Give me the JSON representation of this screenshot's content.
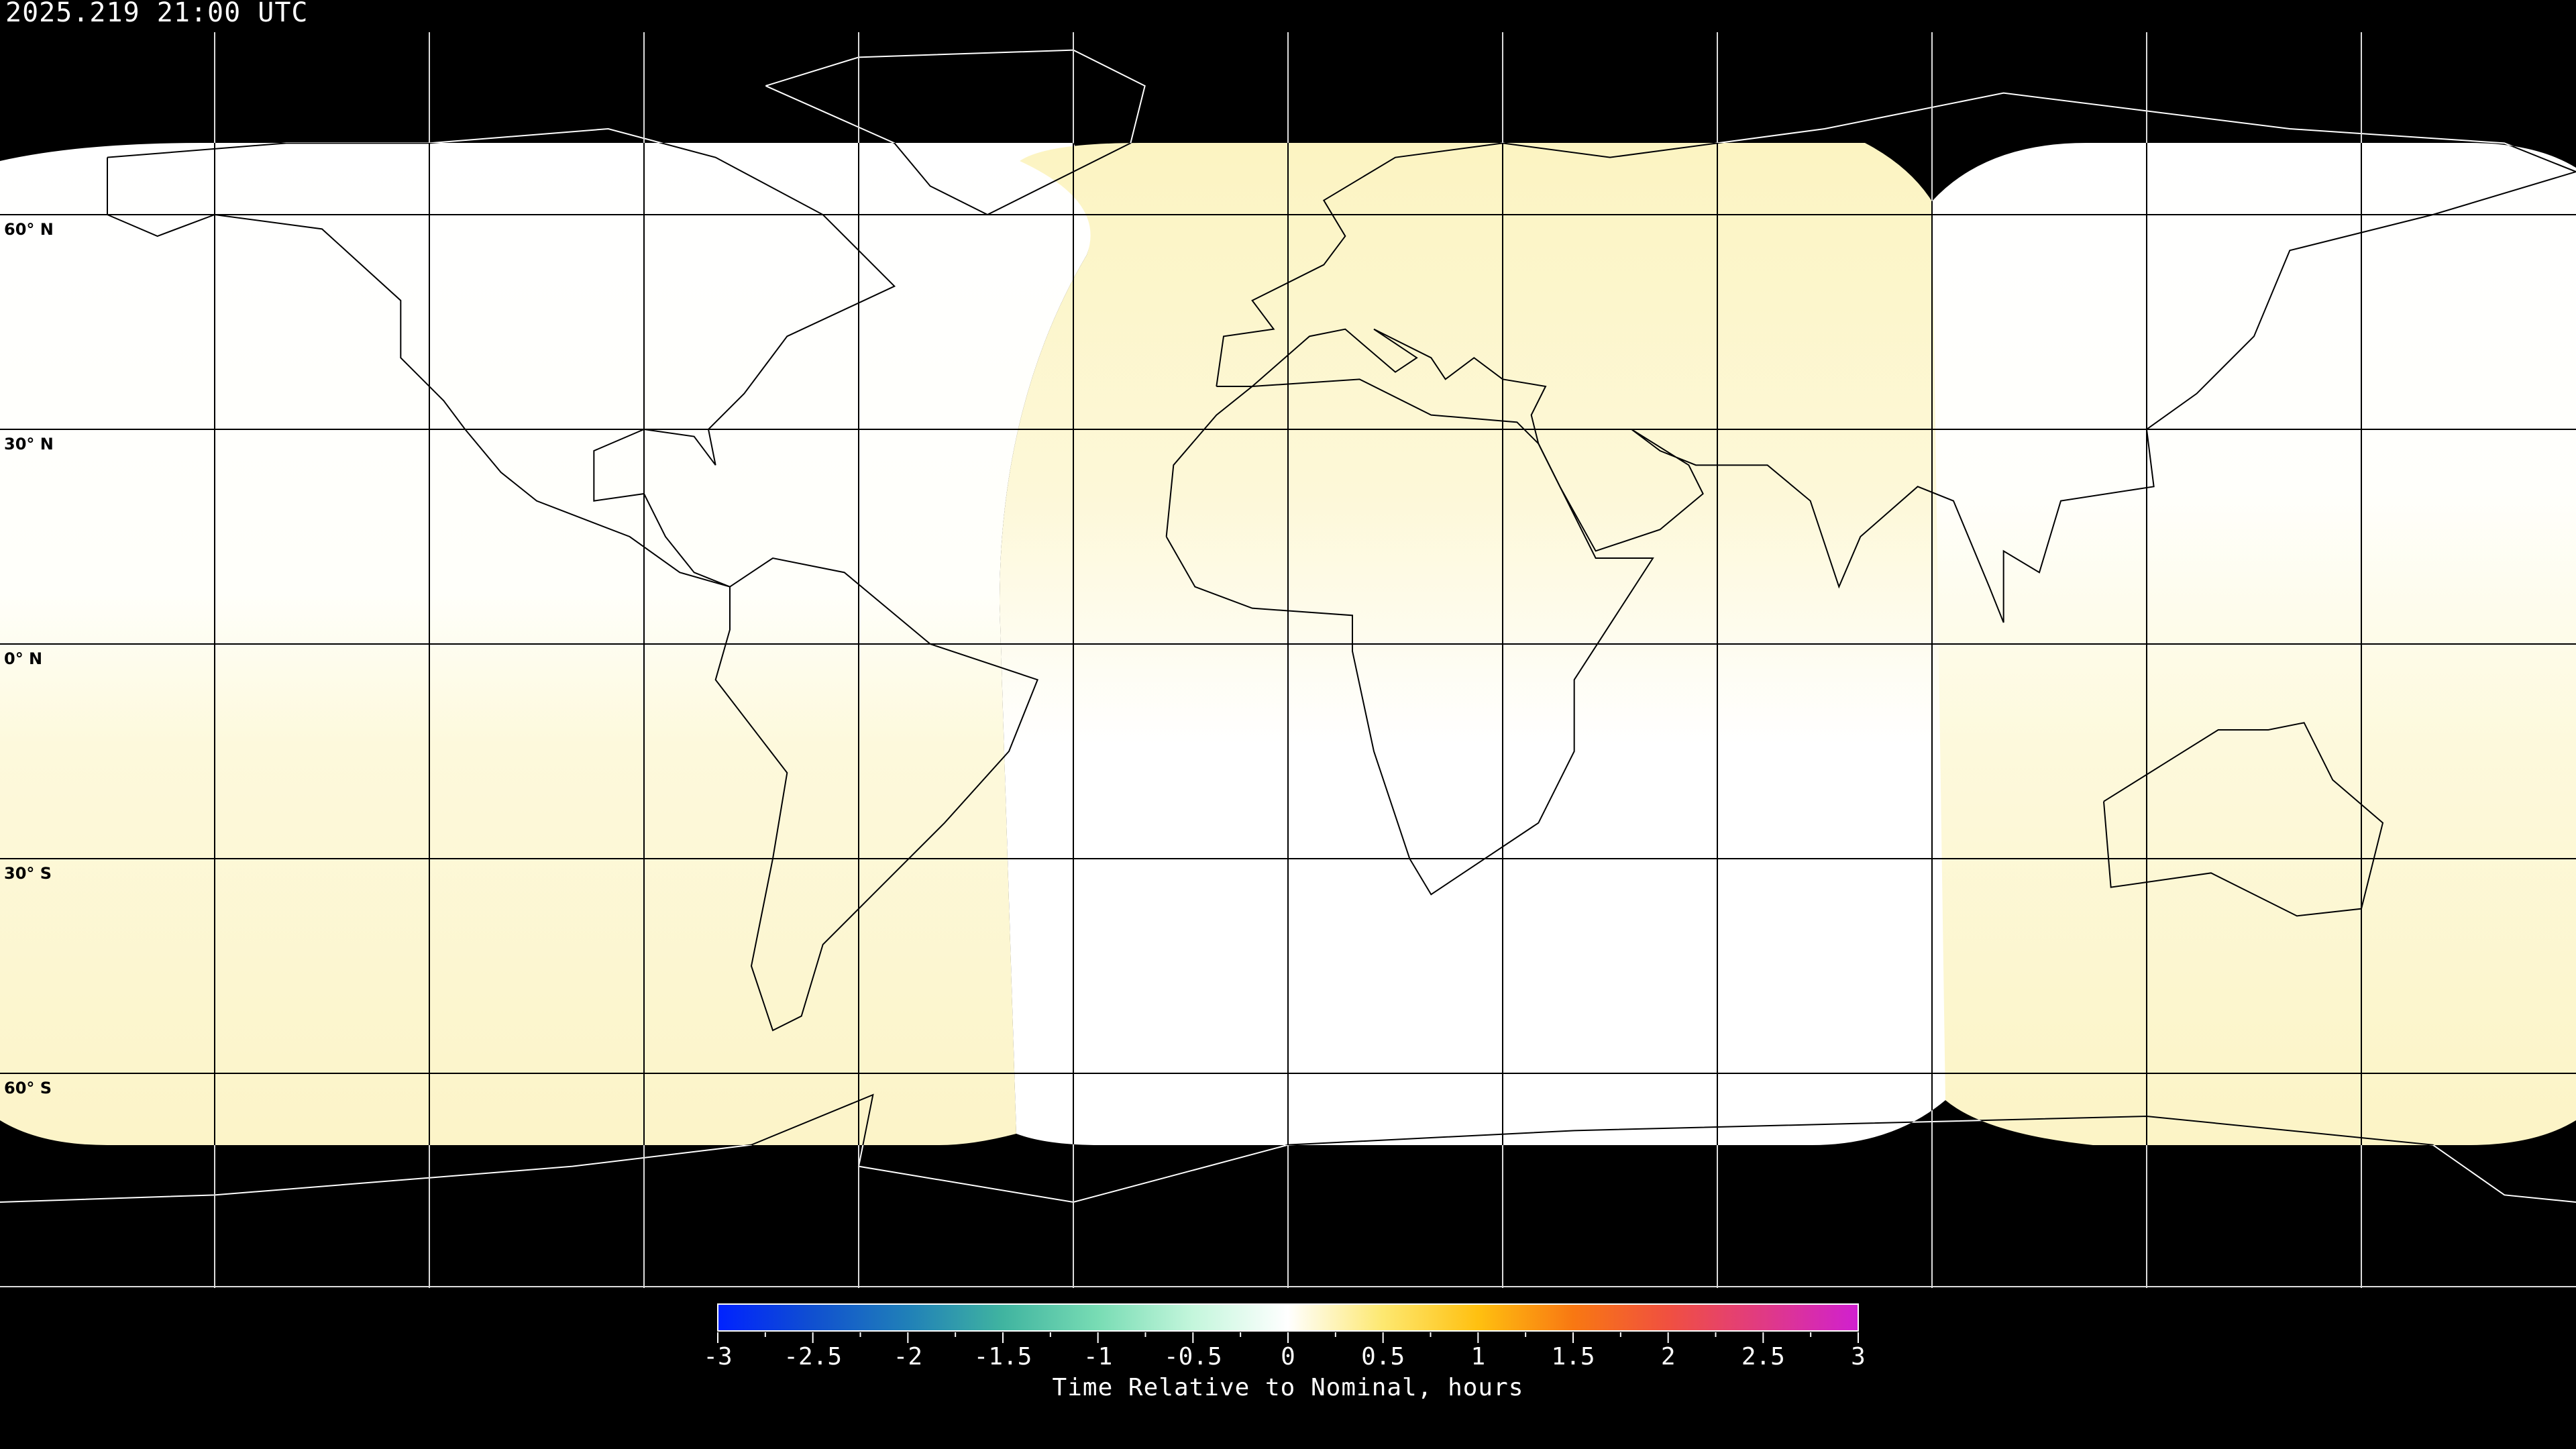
{
  "header": {
    "timestamp": "2025.219 21:00 UTC"
  },
  "map": {
    "projection": "equirectangular",
    "gridline_longitudes": [
      -150,
      -120,
      -90,
      -60,
      -30,
      0,
      30,
      60,
      90,
      120,
      150
    ],
    "gridline_latitudes": [
      60,
      30,
      0,
      -30,
      -60
    ],
    "lat_labels": [
      {
        "lat": 60,
        "text": "60° N"
      },
      {
        "lat": 30,
        "text": "30° N"
      },
      {
        "lat": 0,
        "text": "0° N"
      },
      {
        "lat": -30,
        "text": "30° S"
      },
      {
        "lat": -60,
        "text": "60° S"
      }
    ],
    "background_color": "#000000",
    "coverage_colors": {
      "near_nominal": "#ffffff",
      "slightly_late": "#fcf5c4"
    }
  },
  "colorbar": {
    "title": "Time Relative to Nominal, hours",
    "min": -3,
    "max": 3,
    "tick_labels": [
      "-3",
      "-2.5",
      "-2",
      "-1.5",
      "-1",
      "-0.5",
      "0",
      "0.5",
      "1",
      "1.5",
      "2",
      "2.5",
      "3"
    ],
    "colors": [
      {
        "value": -3,
        "color": "#0022ff"
      },
      {
        "value": -2.5,
        "color": "#1050d0"
      },
      {
        "value": -2,
        "color": "#2080b8"
      },
      {
        "value": -1.5,
        "color": "#40b4a0"
      },
      {
        "value": -1,
        "color": "#78dcb4"
      },
      {
        "value": -0.5,
        "color": "#c4f6dc"
      },
      {
        "value": 0,
        "color": "#ffffff"
      },
      {
        "value": 0.5,
        "color": "#fde870"
      },
      {
        "value": 1,
        "color": "#ffc010"
      },
      {
        "value": 1.5,
        "color": "#f87812"
      },
      {
        "value": 2,
        "color": "#f05040"
      },
      {
        "value": 2.5,
        "color": "#e03a84"
      },
      {
        "value": 3,
        "color": "#d020d0"
      }
    ]
  }
}
